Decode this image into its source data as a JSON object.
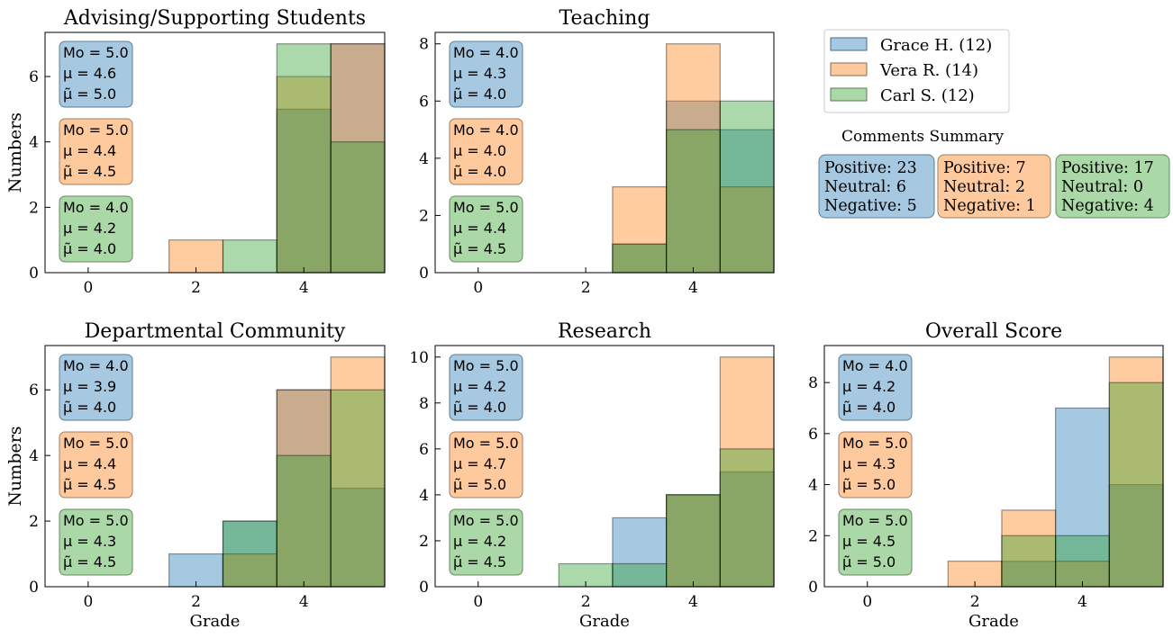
{
  "colors": {
    "grace": "#1f77b4",
    "vera": "#ff7f0e",
    "carl": "#2ca02c"
  },
  "legend": [
    {
      "label": "Grace H. (12)",
      "color": "#1f77b4"
    },
    {
      "label": "Vera R. (14)",
      "color": "#ff7f0e"
    },
    {
      "label": "Carl S. (12)",
      "color": "#2ca02c"
    }
  ],
  "comments_summary": {
    "title": "Comments Summary",
    "boxes": [
      {
        "color": "#1f77b4",
        "lines": [
          "Positive: 23",
          "Neutral: 6",
          "Negative: 5"
        ]
      },
      {
        "color": "#ff7f0e",
        "lines": [
          "Positive: 7",
          "Neutral: 2",
          "Negative: 1"
        ]
      },
      {
        "color": "#2ca02c",
        "lines": [
          "Positive: 17",
          "Neutral: 0",
          "Negative: 4"
        ]
      }
    ]
  },
  "chart_data": [
    {
      "type": "bar",
      "title": "Advising/Supporting Students",
      "xlabel": "",
      "ylabel": "Numbers",
      "categories": [
        1,
        2,
        3,
        4,
        5
      ],
      "xlim": [
        -0.8,
        5.5
      ],
      "xticks": [
        0,
        2,
        4
      ],
      "ylim": [
        0,
        7.35
      ],
      "yticks": [
        0,
        2,
        4,
        6
      ],
      "series": [
        {
          "name": "Grace H. (12)",
          "values": [
            0,
            0,
            0,
            5,
            7
          ],
          "stats": [
            "Mo = 5.0",
            "μ = 4.6",
            "μ̃ = 5.0"
          ]
        },
        {
          "name": "Vera R. (14)",
          "values": [
            0,
            1,
            0,
            6,
            7
          ],
          "stats": [
            "Mo = 5.0",
            "μ = 4.4",
            "μ̃ = 4.5"
          ]
        },
        {
          "name": "Carl S. (12)",
          "values": [
            0,
            0,
            1,
            7,
            4
          ],
          "stats": [
            "Mo = 4.0",
            "μ = 4.2",
            "μ̃ = 4.0"
          ]
        }
      ]
    },
    {
      "type": "bar",
      "title": "Teaching",
      "xlabel": "",
      "ylabel": "",
      "categories": [
        1,
        2,
        3,
        4,
        5
      ],
      "xlim": [
        -0.8,
        5.5
      ],
      "xticks": [
        0,
        2,
        4
      ],
      "ylim": [
        0,
        8.4
      ],
      "yticks": [
        0,
        2,
        4,
        6,
        8
      ],
      "series": [
        {
          "name": "Grace H. (12)",
          "values": [
            0,
            0,
            1,
            6,
            5
          ],
          "stats": [
            "Mo = 4.0",
            "μ = 4.3",
            "μ̃ = 4.0"
          ]
        },
        {
          "name": "Vera R. (14)",
          "values": [
            0,
            0,
            3,
            8,
            3
          ],
          "stats": [
            "Mo = 4.0",
            "μ = 4.0",
            "μ̃ = 4.0"
          ]
        },
        {
          "name": "Carl S. (12)",
          "values": [
            0,
            0,
            1,
            5,
            6
          ],
          "stats": [
            "Mo = 5.0",
            "μ = 4.4",
            "μ̃ = 4.5"
          ]
        }
      ]
    },
    {
      "type": "bar",
      "title": "Departmental Community",
      "xlabel": "Grade",
      "ylabel": "Numbers",
      "categories": [
        1,
        2,
        3,
        4,
        5
      ],
      "xlim": [
        -0.8,
        5.5
      ],
      "xticks": [
        0,
        2,
        4
      ],
      "ylim": [
        0,
        7.35
      ],
      "yticks": [
        0,
        2,
        4,
        6
      ],
      "series": [
        {
          "name": "Grace H. (12)",
          "values": [
            0,
            1,
            2,
            6,
            3
          ],
          "stats": [
            "Mo = 4.0",
            "μ = 3.9",
            "μ̃ = 4.0"
          ]
        },
        {
          "name": "Vera R. (14)",
          "values": [
            0,
            0,
            1,
            6,
            7
          ],
          "stats": [
            "Mo = 5.0",
            "μ = 4.4",
            "μ̃ = 4.5"
          ]
        },
        {
          "name": "Carl S. (12)",
          "values": [
            0,
            0,
            2,
            4,
            6
          ],
          "stats": [
            "Mo = 5.0",
            "μ = 4.3",
            "μ̃ = 4.5"
          ]
        }
      ]
    },
    {
      "type": "bar",
      "title": "Research",
      "xlabel": "Grade",
      "ylabel": "",
      "categories": [
        1,
        2,
        3,
        4,
        5
      ],
      "xlim": [
        -0.8,
        5.5
      ],
      "xticks": [
        0,
        2,
        4
      ],
      "ylim": [
        0,
        10.5
      ],
      "yticks": [
        0,
        2,
        4,
        6,
        8,
        10
      ],
      "series": [
        {
          "name": "Grace H. (12)",
          "values": [
            0,
            0,
            3,
            4,
            5
          ],
          "stats": [
            "Mo = 5.0",
            "μ = 4.2",
            "μ̃ = 4.0"
          ]
        },
        {
          "name": "Vera R. (14)",
          "values": [
            0,
            0,
            0,
            4,
            10
          ],
          "stats": [
            "Mo = 5.0",
            "μ = 4.7",
            "μ̃ = 5.0"
          ]
        },
        {
          "name": "Carl S. (12)",
          "values": [
            0,
            1,
            1,
            4,
            6
          ],
          "stats": [
            "Mo = 5.0",
            "μ = 4.2",
            "μ̃ = 4.5"
          ]
        }
      ]
    },
    {
      "type": "bar",
      "title": "Overall Score",
      "xlabel": "Grade",
      "ylabel": "",
      "categories": [
        1,
        2,
        3,
        4,
        5
      ],
      "xlim": [
        -0.8,
        5.5
      ],
      "xticks": [
        0,
        2,
        4
      ],
      "ylim": [
        0,
        9.45
      ],
      "yticks": [
        0,
        2,
        4,
        6,
        8
      ],
      "series": [
        {
          "name": "Grace H. (12)",
          "values": [
            0,
            0,
            1,
            7,
            4
          ],
          "stats": [
            "Mo = 4.0",
            "μ = 4.2",
            "μ̃ = 4.0"
          ]
        },
        {
          "name": "Vera R. (14)",
          "values": [
            0,
            1,
            3,
            1,
            9
          ],
          "stats": [
            "Mo = 5.0",
            "μ = 4.3",
            "μ̃ = 5.0"
          ]
        },
        {
          "name": "Carl S. (12)",
          "values": [
            0,
            0,
            2,
            2,
            8
          ],
          "stats": [
            "Mo = 5.0",
            "μ = 4.5",
            "μ̃ = 5.0"
          ]
        }
      ]
    }
  ]
}
